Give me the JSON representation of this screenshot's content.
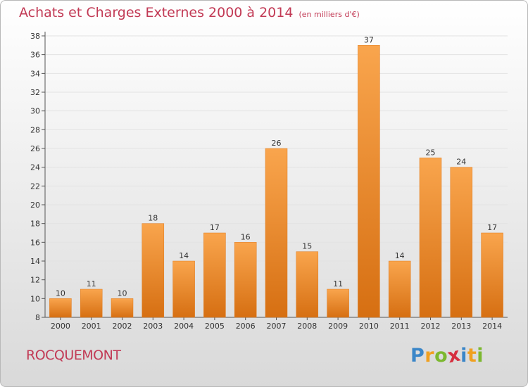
{
  "header": {
    "title": "Achats et Charges Externes 2000 à 2014",
    "subtitle": "(en milliers d'€)"
  },
  "footer": {
    "city": "ROCQUEMONT",
    "logo": {
      "letters": [
        "P",
        "r",
        "o",
        "x",
        "i",
        "t",
        "i"
      ],
      "colors": [
        "#3a86c8",
        "#f0a020",
        "#7cb82f",
        "#d62f3f",
        "#3a86c8",
        "#f0a020",
        "#7cb82f"
      ]
    }
  },
  "chart_data": {
    "type": "bar",
    "categories": [
      "2000",
      "2001",
      "2002",
      "2003",
      "2004",
      "2005",
      "2006",
      "2007",
      "2008",
      "2009",
      "2010",
      "2011",
      "2012",
      "2013",
      "2014"
    ],
    "values": [
      10,
      11,
      10,
      18,
      14,
      17,
      16,
      26,
      15,
      11,
      37,
      14,
      25,
      24,
      17
    ],
    "ylim": [
      8,
      38
    ],
    "yticks": [
      8,
      10,
      12,
      14,
      16,
      18,
      20,
      22,
      24,
      26,
      28,
      30,
      32,
      34,
      36,
      38
    ],
    "grid": true,
    "bar_color": "#f08f2e"
  }
}
